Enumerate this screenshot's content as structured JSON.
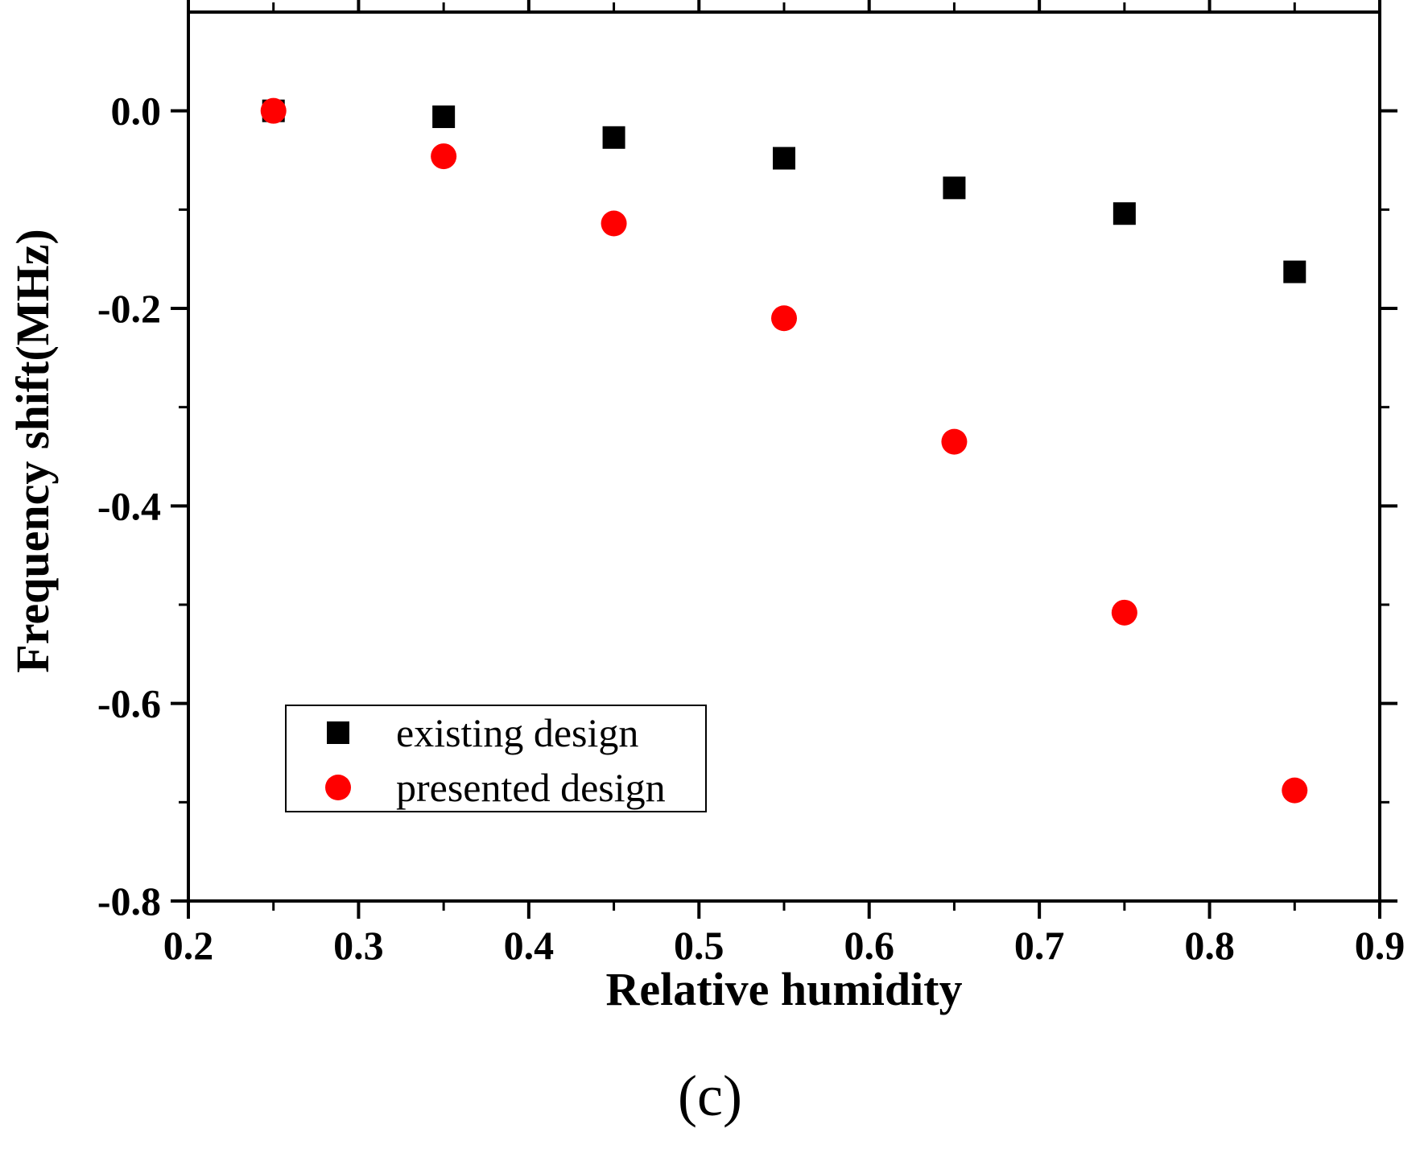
{
  "chart_data": {
    "type": "scatter",
    "xlabel": "Relative humidity",
    "ylabel": "Frequency shift(MHz)",
    "xlim": [
      0.2,
      0.9
    ],
    "ylim": [
      -0.8,
      0.1
    ],
    "x_ticks": [
      "0.2",
      "0.3",
      "0.4",
      "0.5",
      "0.6",
      "0.7",
      "0.8",
      "0.9"
    ],
    "y_ticks": [
      "0.0",
      "-0.2",
      "-0.4",
      "-0.6",
      "-0.8"
    ],
    "grid": false,
    "legend_position": "bottom-left",
    "series": [
      {
        "name": "existing design",
        "marker": "square",
        "color": "#000000",
        "x": [
          0.25,
          0.35,
          0.45,
          0.55,
          0.65,
          0.75,
          0.85
        ],
        "y": [
          0.0,
          -0.006,
          -0.027,
          -0.048,
          -0.078,
          -0.104,
          -0.163
        ]
      },
      {
        "name": "presented design",
        "marker": "circle",
        "color": "#ff0000",
        "x": [
          0.25,
          0.35,
          0.45,
          0.55,
          0.65,
          0.75,
          0.85
        ],
        "y": [
          0.0,
          -0.046,
          -0.114,
          -0.21,
          -0.335,
          -0.508,
          -0.688
        ]
      }
    ]
  },
  "caption": "(c)"
}
